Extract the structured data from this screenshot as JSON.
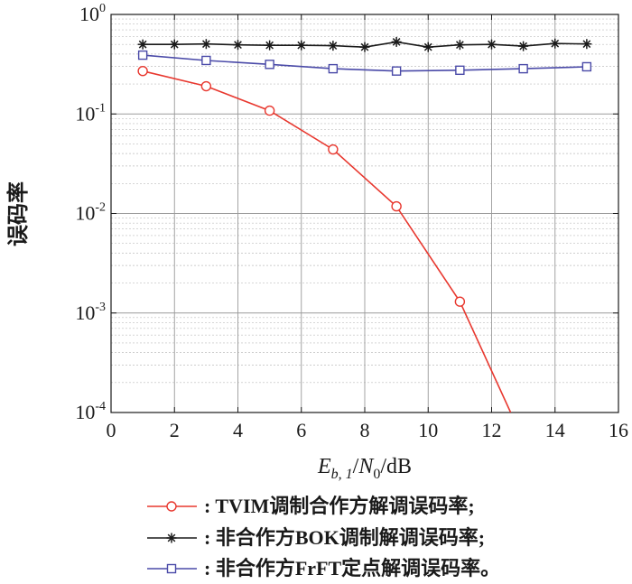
{
  "chart_data": {
    "type": "line",
    "title": "",
    "ylabel": "误码率",
    "xlabel": {
      "e": "E",
      "sub": "b, 1",
      "slash1": "/",
      "n": "N",
      "nsub": "0",
      "unit": "/dB"
    },
    "xlim": [
      0,
      16
    ],
    "ylim": [
      0.0001,
      1
    ],
    "yscale": "log",
    "x_ticks": [
      "0",
      "2",
      "4",
      "6",
      "8",
      "10",
      "12",
      "14",
      "16"
    ],
    "y_ticks": [
      {
        "base": "10",
        "exp": "0"
      },
      {
        "base": "10",
        "exp": "-1"
      },
      {
        "base": "10",
        "exp": "-2"
      },
      {
        "base": "10",
        "exp": "-3"
      },
      {
        "base": "10",
        "exp": "-4"
      }
    ],
    "grid": true,
    "legend_position": "bottom",
    "series": [
      {
        "name": "TVIM调制合作方解调误码率;",
        "color": "#e8382f",
        "marker": "circle",
        "x": [
          1,
          3,
          5,
          7,
          9,
          11,
          12.6
        ],
        "y": [
          0.27,
          0.19,
          0.108,
          0.044,
          0.0118,
          0.0013,
          0.0001
        ],
        "marker_x": [
          1,
          3,
          5,
          7,
          9,
          11
        ]
      },
      {
        "name": "非合作方BOK调制解调误码率;",
        "color": "#1a1a1a",
        "marker": "star",
        "x": [
          1,
          2,
          3,
          4,
          5,
          6,
          7,
          8,
          9,
          10,
          11,
          12,
          13,
          14,
          15
        ],
        "y": [
          0.5,
          0.5,
          0.505,
          0.495,
          0.49,
          0.49,
          0.485,
          0.47,
          0.53,
          0.47,
          0.495,
          0.5,
          0.48,
          0.51,
          0.505
        ]
      },
      {
        "name": "非合作方FrFT定点解调误码率。",
        "color": "#4a4aa8",
        "marker": "square",
        "x": [
          1,
          3,
          5,
          7,
          9,
          11,
          13,
          15
        ],
        "y": [
          0.39,
          0.345,
          0.315,
          0.285,
          0.27,
          0.275,
          0.285,
          0.298
        ]
      }
    ]
  },
  "legend_prefix": ": "
}
